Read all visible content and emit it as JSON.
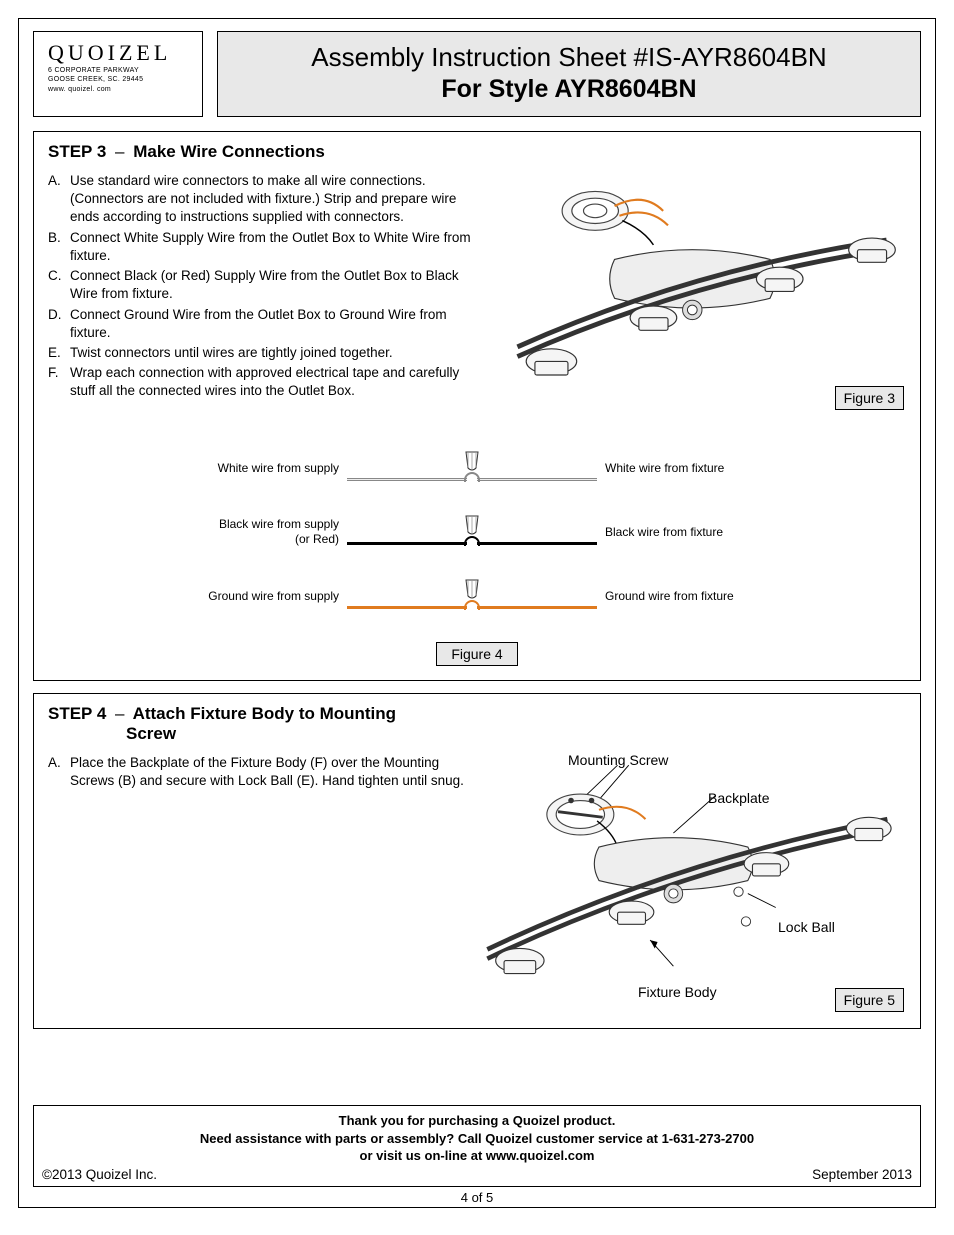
{
  "brand": {
    "name": "QUOIZEL",
    "addr1": "6 CORPORATE PARKWAY",
    "addr2": "GOOSE CREEK, SC. 29445",
    "web": "www. quoizel. com"
  },
  "header": {
    "line1": "Assembly Instruction Sheet #IS-AYR8604BN",
    "line2": "For Style AYR8604BN"
  },
  "step3": {
    "title_prefix": "STEP 3",
    "title_dash": "–",
    "title_rest": "Make Wire Connections",
    "items": [
      {
        "m": "A.",
        "t": "Use standard wire connectors to make all wire connections. (Connectors are not included with fixture.) Strip and prepare wire ends according to instructions supplied with connectors."
      },
      {
        "m": "B.",
        "t": "Connect White Supply Wire from the Outlet Box to White Wire from fixture."
      },
      {
        "m": "C.",
        "t": "Connect Black (or Red) Supply Wire from the Outlet Box to Black Wire from fixture."
      },
      {
        "m": "D.",
        "t": "Connect Ground Wire from the Outlet Box to Ground Wire from fixture."
      },
      {
        "m": "E.",
        "t": "Twist connectors until wires are tightly joined together."
      },
      {
        "m": "F.",
        "t": "Wrap each connection with approved electrical tape and carefully stuff all the connected wires into the Outlet Box."
      }
    ],
    "figure3": "Figure 3",
    "figure4": "Figure 4",
    "wires": [
      {
        "left": "White wire from supply",
        "right": "White wire from fixture",
        "color": "#eeeeee",
        "stroke": "#888888"
      },
      {
        "left_l1": "Black wire from supply",
        "left_l2": "(or Red)",
        "right": "Black wire from fixture",
        "color": "#000000",
        "stroke": "#000000"
      },
      {
        "left": "Ground wire from supply",
        "right": "Ground wire from fixture",
        "color": "#e07b1f",
        "stroke": "#e07b1f"
      }
    ]
  },
  "step4": {
    "title_prefix": "STEP 4",
    "title_dash": "–",
    "title_rest1": "Attach Fixture Body to Mounting",
    "title_rest2": "Screw",
    "items": [
      {
        "m": "A.",
        "t": "Place the Backplate of the Fixture Body (F) over the Mounting Screws (B) and secure with Lock Ball (E). Hand tighten until snug."
      }
    ],
    "labels": {
      "mountingScrew": "Mounting Screw",
      "backplate": "Backplate",
      "lockBall": "Lock Ball",
      "fixtureBody": "Fixture Body"
    },
    "figure5": "Figure 5"
  },
  "footer": {
    "thanks": "Thank you for purchasing a Quoizel product.",
    "assist": "Need assistance with parts or assembly? Call Quoizel customer service at 1-631-273-2700",
    "visit": "or visit us on-line at www.quoizel.com",
    "copyright": "©2013  Quoizel Inc.",
    "date": "September 2013"
  },
  "pageNum": "4 of 5",
  "colors": {
    "accent_orange": "#e07b1f",
    "panel_grey": "#e8e8e8"
  }
}
